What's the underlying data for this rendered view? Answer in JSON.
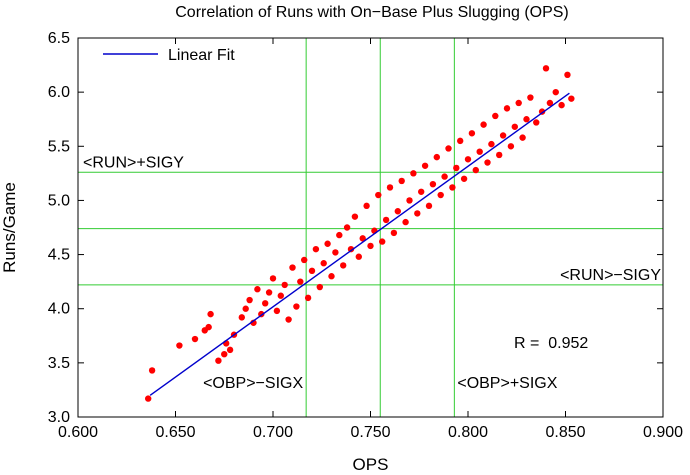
{
  "chart_data": {
    "type": "scatter",
    "title": "Correlation of Runs with On−Base Plus Slugging (OPS)",
    "xlabel": "OPS",
    "ylabel": "Runs/Game",
    "xlim": [
      0.6,
      0.9
    ],
    "ylim": [
      3.0,
      6.5
    ],
    "x_ticks": [
      0.6,
      0.65,
      0.7,
      0.75,
      0.8,
      0.85,
      0.9
    ],
    "x_tick_labels": [
      "0.600",
      "0.650",
      "0.700",
      "0.750",
      "0.800",
      "0.850",
      "0.900"
    ],
    "y_ticks": [
      3.0,
      3.5,
      4.0,
      4.5,
      5.0,
      5.5,
      6.0,
      6.5
    ],
    "y_tick_labels": [
      "3.0",
      "3.5",
      "4.0",
      "4.5",
      "5.0",
      "5.5",
      "6.0",
      "6.5"
    ],
    "legend": {
      "position": "top-left",
      "entries": [
        {
          "label": "Linear Fit",
          "color": "#0000cc"
        }
      ]
    },
    "fit_line": {
      "x": [
        0.637,
        0.852
      ],
      "y": [
        3.2,
        5.99
      ],
      "color": "#0000cc"
    },
    "reference_lines": {
      "vertical": [
        {
          "x": 0.717,
          "label": "<OBP>−SIGX"
        },
        {
          "x": 0.755,
          "label": ""
        },
        {
          "x": 0.793,
          "label": "<OBP>+SIGX"
        }
      ],
      "horizontal": [
        {
          "y": 5.26,
          "label": "<RUN>+SIGY"
        },
        {
          "y": 4.74,
          "label": ""
        },
        {
          "y": 4.22,
          "label": "<RUN>−SIGY"
        }
      ],
      "color": "#33cc33"
    },
    "annotation": "R =  0.952",
    "point_color": "#ff0000",
    "series": [
      {
        "points": [
          [
            0.636,
            3.17
          ],
          [
            0.638,
            3.43
          ],
          [
            0.652,
            3.66
          ],
          [
            0.66,
            3.72
          ],
          [
            0.665,
            3.8
          ],
          [
            0.667,
            3.83
          ],
          [
            0.668,
            3.95
          ],
          [
            0.672,
            3.52
          ],
          [
            0.675,
            3.58
          ],
          [
            0.676,
            3.68
          ],
          [
            0.678,
            3.62
          ],
          [
            0.68,
            3.76
          ],
          [
            0.684,
            3.92
          ],
          [
            0.686,
            4.0
          ],
          [
            0.688,
            4.08
          ],
          [
            0.69,
            3.87
          ],
          [
            0.692,
            4.18
          ],
          [
            0.694,
            3.95
          ],
          [
            0.696,
            4.05
          ],
          [
            0.698,
            4.15
          ],
          [
            0.7,
            4.28
          ],
          [
            0.702,
            3.98
          ],
          [
            0.704,
            4.12
          ],
          [
            0.706,
            4.22
          ],
          [
            0.708,
            3.9
          ],
          [
            0.71,
            4.38
          ],
          [
            0.712,
            4.02
          ],
          [
            0.714,
            4.25
          ],
          [
            0.716,
            4.45
          ],
          [
            0.718,
            4.1
          ],
          [
            0.72,
            4.35
          ],
          [
            0.722,
            4.55
          ],
          [
            0.724,
            4.2
          ],
          [
            0.726,
            4.42
          ],
          [
            0.728,
            4.6
          ],
          [
            0.73,
            4.3
          ],
          [
            0.732,
            4.52
          ],
          [
            0.734,
            4.68
          ],
          [
            0.736,
            4.4
          ],
          [
            0.738,
            4.75
          ],
          [
            0.74,
            4.55
          ],
          [
            0.742,
            4.85
          ],
          [
            0.744,
            4.48
          ],
          [
            0.746,
            4.65
          ],
          [
            0.748,
            4.95
          ],
          [
            0.75,
            4.58
          ],
          [
            0.752,
            4.72
          ],
          [
            0.754,
            5.05
          ],
          [
            0.756,
            4.62
          ],
          [
            0.758,
            4.82
          ],
          [
            0.76,
            5.12
          ],
          [
            0.762,
            4.7
          ],
          [
            0.764,
            4.9
          ],
          [
            0.766,
            5.18
          ],
          [
            0.768,
            4.8
          ],
          [
            0.77,
            5.0
          ],
          [
            0.772,
            5.25
          ],
          [
            0.774,
            4.88
          ],
          [
            0.776,
            5.08
          ],
          [
            0.778,
            5.32
          ],
          [
            0.78,
            4.95
          ],
          [
            0.782,
            5.15
          ],
          [
            0.784,
            5.4
          ],
          [
            0.786,
            5.05
          ],
          [
            0.788,
            5.22
          ],
          [
            0.79,
            5.48
          ],
          [
            0.792,
            5.12
          ],
          [
            0.794,
            5.3
          ],
          [
            0.796,
            5.55
          ],
          [
            0.798,
            5.2
          ],
          [
            0.8,
            5.38
          ],
          [
            0.802,
            5.62
          ],
          [
            0.804,
            5.28
          ],
          [
            0.806,
            5.45
          ],
          [
            0.808,
            5.7
          ],
          [
            0.81,
            5.35
          ],
          [
            0.812,
            5.52
          ],
          [
            0.814,
            5.78
          ],
          [
            0.816,
            5.42
          ],
          [
            0.818,
            5.6
          ],
          [
            0.82,
            5.85
          ],
          [
            0.822,
            5.5
          ],
          [
            0.824,
            5.68
          ],
          [
            0.826,
            5.9
          ],
          [
            0.828,
            5.58
          ],
          [
            0.83,
            5.75
          ],
          [
            0.832,
            5.95
          ],
          [
            0.835,
            5.72
          ],
          [
            0.838,
            5.82
          ],
          [
            0.84,
            6.22
          ],
          [
            0.842,
            5.9
          ],
          [
            0.845,
            6.0
          ],
          [
            0.848,
            5.88
          ],
          [
            0.851,
            6.16
          ],
          [
            0.853,
            5.94
          ]
        ]
      }
    ]
  }
}
